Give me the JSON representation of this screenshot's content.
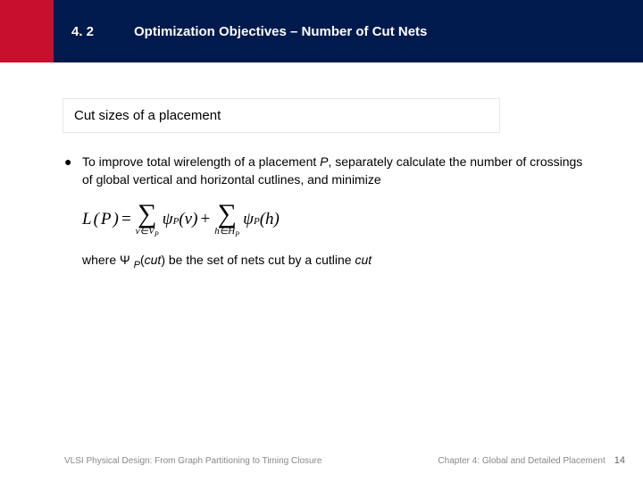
{
  "header": {
    "section_number": "4. 2",
    "title": "Optimization Objectives – Number of Cut Nets",
    "red_color": "#c8102e",
    "navy_color": "#001a4d"
  },
  "subheading": "Cut sizes of a placement",
  "bullet": {
    "marker": "●",
    "text_before_P": "To improve total wirelength of a placement ",
    "P": "P",
    "text_after_P": ", separately calculate the number of crossings of global vertical and horizontal cutlines, and minimize"
  },
  "formula": {
    "lhs_L": "L",
    "lhs_P": "P",
    "eq": " = ",
    "sum1_sub": "v∈V",
    "sum1_sub_P": "P",
    "psi": "ψ",
    "psi_sub": "P",
    "arg_v": "v",
    "plus": " + ",
    "sum2_sub": "h∈H",
    "sum2_sub_P": "P",
    "arg_h": "h"
  },
  "where": {
    "prefix": "where Ψ ",
    "sub": "P",
    "mid": "(",
    "cut1": "cut",
    "after_paren": ") be the set of nets cut by a cutline ",
    "cut2": "cut"
  },
  "footer": {
    "left": "VLSI Physical Design: From Graph Partitioning to Timing Closure",
    "right": "Chapter 4: Global and Detailed Placement",
    "page": "14"
  }
}
